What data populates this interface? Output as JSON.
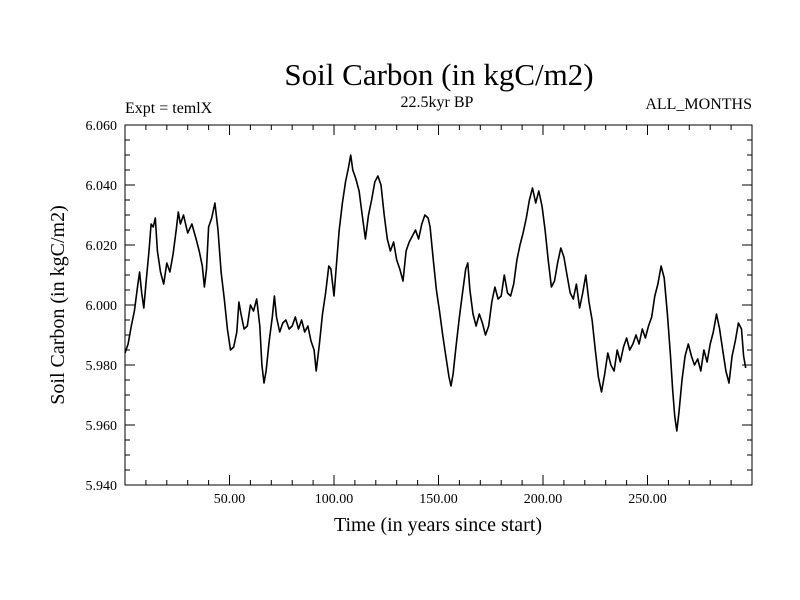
{
  "chart_data": {
    "type": "line",
    "title": "Soil Carbon (in kgC/m2)",
    "subtitle_left": "Expt = temlX",
    "subtitle_center": "22.5kyr BP",
    "subtitle_right": "ALL_MONTHS",
    "xlabel": "Time (in years since start)",
    "ylabel": "Soil Carbon (in kgC/m2)",
    "xlim": [
      0,
      300
    ],
    "ylim": [
      5.94,
      6.06
    ],
    "xticks": [
      50,
      100,
      150,
      200,
      250
    ],
    "xtick_labels": [
      "50.00",
      "100.00",
      "150.00",
      "200.00",
      "250.00"
    ],
    "yticks": [
      5.94,
      5.96,
      5.98,
      6.0,
      6.02,
      6.04,
      6.06
    ],
    "ytick_labels": [
      "5.940",
      "5.960",
      "5.980",
      "6.000",
      "6.020",
      "6.040",
      "6.060"
    ],
    "x_minor_step": 10,
    "y_minor_step": 0.005,
    "line_color": "#000000",
    "series": [
      {
        "name": "Soil Carbon",
        "points": [
          [
            0,
            5.984
          ],
          [
            1.5,
            5.987
          ],
          [
            3,
            5.993
          ],
          [
            4.5,
            5.998
          ],
          [
            6,
            6.006
          ],
          [
            7,
            6.011
          ],
          [
            8,
            6.004
          ],
          [
            9,
            5.999
          ],
          [
            10,
            6.007
          ],
          [
            11.5,
            6.018
          ],
          [
            12.5,
            6.027
          ],
          [
            13.5,
            6.026
          ],
          [
            14.5,
            6.029
          ],
          [
            15.5,
            6.018
          ],
          [
            17,
            6.011
          ],
          [
            18.5,
            6.007
          ],
          [
            20,
            6.014
          ],
          [
            21.5,
            6.011
          ],
          [
            23,
            6.017
          ],
          [
            24.5,
            6.025
          ],
          [
            25.5,
            6.031
          ],
          [
            26.5,
            6.027
          ],
          [
            28,
            6.03
          ],
          [
            30,
            6.024
          ],
          [
            32,
            6.027
          ],
          [
            34,
            6.022
          ],
          [
            35.5,
            6.018
          ],
          [
            37,
            6.013
          ],
          [
            38,
            6.006
          ],
          [
            39,
            6.012
          ],
          [
            40,
            6.026
          ],
          [
            41.5,
            6.029
          ],
          [
            43,
            6.034
          ],
          [
            44.5,
            6.025
          ],
          [
            46,
            6.011
          ],
          [
            47.5,
            6.002
          ],
          [
            49,
            5.992
          ],
          [
            50.5,
            5.985
          ],
          [
            52,
            5.986
          ],
          [
            53.5,
            5.991
          ],
          [
            54.5,
            6.001
          ],
          [
            55.5,
            5.997
          ],
          [
            57,
            5.992
          ],
          [
            58.5,
            5.993
          ],
          [
            60,
            6.0
          ],
          [
            61.5,
            5.998
          ],
          [
            63,
            6.002
          ],
          [
            64.5,
            5.993
          ],
          [
            65.5,
            5.98
          ],
          [
            66.5,
            5.974
          ],
          [
            67.5,
            5.978
          ],
          [
            69,
            5.988
          ],
          [
            70.5,
            5.996
          ],
          [
            71.5,
            6.003
          ],
          [
            72.5,
            5.996
          ],
          [
            74,
            5.991
          ],
          [
            75.5,
            5.994
          ],
          [
            77,
            5.995
          ],
          [
            78.5,
            5.992
          ],
          [
            80,
            5.993
          ],
          [
            81.5,
            5.996
          ],
          [
            83,
            5.992
          ],
          [
            84.5,
            5.995
          ],
          [
            86,
            5.991
          ],
          [
            87.5,
            5.993
          ],
          [
            89,
            5.988
          ],
          [
            90.5,
            5.985
          ],
          [
            91.5,
            5.978
          ],
          [
            93,
            5.987
          ],
          [
            94.5,
            5.997
          ],
          [
            96,
            6.004
          ],
          [
            97.5,
            6.013
          ],
          [
            98.5,
            6.012
          ],
          [
            100,
            6.003
          ],
          [
            101,
            6.012
          ],
          [
            102.5,
            6.025
          ],
          [
            104,
            6.034
          ],
          [
            105.5,
            6.041
          ],
          [
            107,
            6.046
          ],
          [
            108,
            6.05
          ],
          [
            109,
            6.045
          ],
          [
            110.5,
            6.042
          ],
          [
            112,
            6.038
          ],
          [
            113.5,
            6.03
          ],
          [
            115,
            6.022
          ],
          [
            116.5,
            6.03
          ],
          [
            118,
            6.035
          ],
          [
            119.5,
            6.041
          ],
          [
            121,
            6.043
          ],
          [
            122.5,
            6.04
          ],
          [
            124,
            6.03
          ],
          [
            125.5,
            6.022
          ],
          [
            127,
            6.018
          ],
          [
            128.5,
            6.021
          ],
          [
            130,
            6.015
          ],
          [
            131.5,
            6.012
          ],
          [
            133,
            6.008
          ],
          [
            134.5,
            6.018
          ],
          [
            136,
            6.021
          ],
          [
            137.5,
            6.023
          ],
          [
            139,
            6.025
          ],
          [
            140.5,
            6.022
          ],
          [
            142,
            6.027
          ],
          [
            143.5,
            6.03
          ],
          [
            145,
            6.029
          ],
          [
            146,
            6.026
          ],
          [
            147.5,
            6.015
          ],
          [
            149,
            6.005
          ],
          [
            150.5,
            5.998
          ],
          [
            152,
            5.99
          ],
          [
            153.5,
            5.983
          ],
          [
            155,
            5.976
          ],
          [
            156,
            5.973
          ],
          [
            157,
            5.977
          ],
          [
            158.5,
            5.987
          ],
          [
            160,
            5.996
          ],
          [
            161.5,
            6.004
          ],
          [
            163,
            6.012
          ],
          [
            164,
            6.014
          ],
          [
            165,
            6.005
          ],
          [
            166.5,
            5.997
          ],
          [
            168,
            5.993
          ],
          [
            169.5,
            5.997
          ],
          [
            171,
            5.994
          ],
          [
            172.5,
            5.99
          ],
          [
            174,
            5.993
          ],
          [
            175.5,
            6.001
          ],
          [
            177,
            6.006
          ],
          [
            178.5,
            6.002
          ],
          [
            180,
            6.003
          ],
          [
            181.5,
            6.01
          ],
          [
            183,
            6.004
          ],
          [
            184.5,
            6.003
          ],
          [
            186,
            6.007
          ],
          [
            187.5,
            6.015
          ],
          [
            189,
            6.02
          ],
          [
            190.5,
            6.024
          ],
          [
            192,
            6.029
          ],
          [
            193.5,
            6.035
          ],
          [
            195,
            6.039
          ],
          [
            196.5,
            6.034
          ],
          [
            198,
            6.038
          ],
          [
            199.5,
            6.033
          ],
          [
            201,
            6.025
          ],
          [
            202.5,
            6.015
          ],
          [
            204,
            6.006
          ],
          [
            205.5,
            6.008
          ],
          [
            207,
            6.014
          ],
          [
            208.5,
            6.019
          ],
          [
            210,
            6.016
          ],
          [
            211.5,
            6.01
          ],
          [
            213,
            6.004
          ],
          [
            214.5,
            6.002
          ],
          [
            216,
            6.007
          ],
          [
            217.5,
            5.999
          ],
          [
            219,
            6.004
          ],
          [
            220.5,
            6.01
          ],
          [
            222,
            6.001
          ],
          [
            223.5,
            5.995
          ],
          [
            225,
            5.985
          ],
          [
            226.5,
            5.976
          ],
          [
            228,
            5.971
          ],
          [
            229.5,
            5.977
          ],
          [
            231,
            5.984
          ],
          [
            232.5,
            5.98
          ],
          [
            234,
            5.978
          ],
          [
            235.5,
            5.985
          ],
          [
            237,
            5.981
          ],
          [
            238.5,
            5.986
          ],
          [
            240,
            5.989
          ],
          [
            241.5,
            5.985
          ],
          [
            243,
            5.987
          ],
          [
            244.5,
            5.99
          ],
          [
            246,
            5.987
          ],
          [
            247.5,
            5.992
          ],
          [
            249,
            5.989
          ],
          [
            250.5,
            5.993
          ],
          [
            252,
            5.996
          ],
          [
            253.5,
            6.003
          ],
          [
            255,
            6.007
          ],
          [
            256.5,
            6.013
          ],
          [
            258,
            6.009
          ],
          [
            259.5,
            5.997
          ],
          [
            261,
            5.983
          ],
          [
            262,
            5.972
          ],
          [
            263,
            5.963
          ],
          [
            264,
            5.958
          ],
          [
            265,
            5.964
          ],
          [
            266.5,
            5.975
          ],
          [
            268,
            5.983
          ],
          [
            269.5,
            5.987
          ],
          [
            271,
            5.983
          ],
          [
            272.5,
            5.98
          ],
          [
            274,
            5.982
          ],
          [
            275.5,
            5.978
          ],
          [
            277,
            5.985
          ],
          [
            278.5,
            5.981
          ],
          [
            280,
            5.987
          ],
          [
            281.5,
            5.991
          ],
          [
            283,
            5.997
          ],
          [
            284.5,
            5.992
          ],
          [
            286,
            5.985
          ],
          [
            287.5,
            5.978
          ],
          [
            289,
            5.974
          ],
          [
            290.5,
            5.983
          ],
          [
            292,
            5.988
          ],
          [
            293.5,
            5.994
          ],
          [
            295,
            5.992
          ],
          [
            296,
            5.983
          ],
          [
            297,
            5.979
          ]
        ]
      }
    ]
  }
}
